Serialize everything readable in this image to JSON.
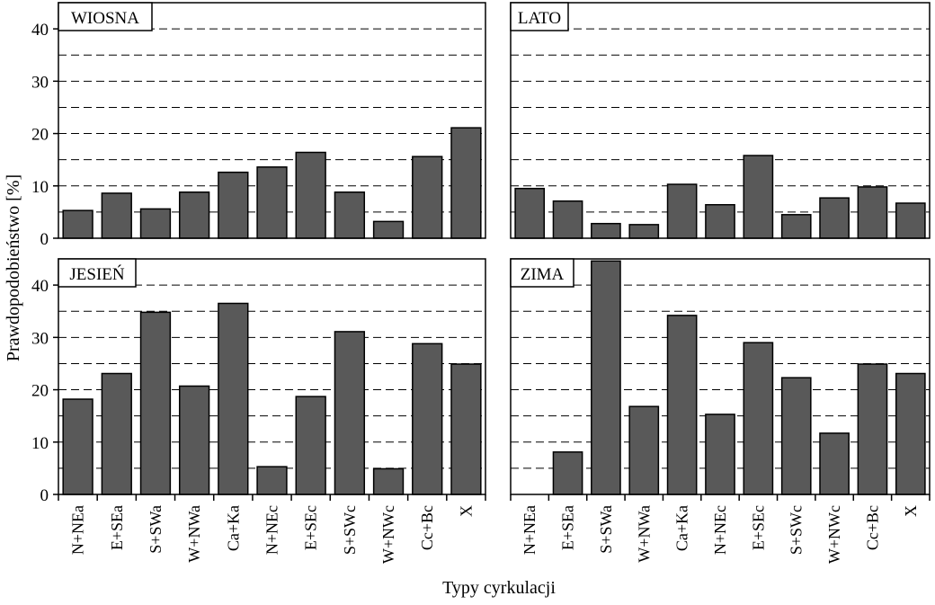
{
  "chart_data": {
    "type": "bar",
    "xlabel": "Typy cyrkulacji",
    "ylabel": "Prawdopodobieństwo [%]",
    "ylim": [
      0,
      45
    ],
    "yticks": [
      0,
      10,
      20,
      30,
      40
    ],
    "grid": "dashed horizontal every 5",
    "categories": [
      "N+NEa",
      "E+SEa",
      "S+SWa",
      "W+NWa",
      "Ca+Ka",
      "N+NEc",
      "E+SEc",
      "S+SWc",
      "W+NWc",
      "Cc+Bc",
      "X"
    ],
    "panels": [
      {
        "title": "WIOSNA",
        "values": [
          5.3,
          8.6,
          5.6,
          8.8,
          12.6,
          13.6,
          16.4,
          8.8,
          3.2,
          15.6,
          21.1
        ]
      },
      {
        "title": "LATO",
        "values": [
          9.5,
          7.1,
          2.8,
          2.6,
          10.3,
          6.4,
          15.8,
          4.5,
          7.7,
          9.8,
          6.7
        ]
      },
      {
        "title": "JESIEŃ",
        "values": [
          18.2,
          23.1,
          34.8,
          20.7,
          36.5,
          5.3,
          18.7,
          31.1,
          4.9,
          28.8,
          24.9
        ]
      },
      {
        "title": "ZIMA",
        "values": [
          0.0,
          8.1,
          44.6,
          16.8,
          34.2,
          15.3,
          29.0,
          22.3,
          11.7,
          24.9,
          23.1
        ]
      }
    ]
  }
}
